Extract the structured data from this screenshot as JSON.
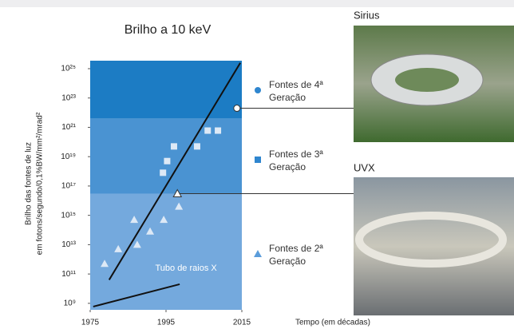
{
  "chart_data": {
    "type": "scatter",
    "title": "Brilho a 10 keV",
    "y_label": [
      "Brilho das fontes de luz",
      "em fotons/segundo/0,1%BW/mm²/mrad²"
    ],
    "x_label": "Tempo (em décadas)",
    "log_y": true,
    "xlim": [
      1975,
      2015
    ],
    "xticks": [
      1975,
      1995,
      2015
    ],
    "ylim": [
      360000000.0,
      3.5e+25
    ],
    "yticks": [
      {
        "value": 1000000000.0,
        "label": "10⁹"
      },
      {
        "value": 100000000000.0,
        "label": "10¹¹"
      },
      {
        "value": 10000000000000.0,
        "label": "10¹³"
      },
      {
        "value": 1000000000000000.0,
        "label": "10¹⁵"
      },
      {
        "value": 1e+17,
        "label": "10¹⁷"
      },
      {
        "value": 1e+19,
        "label": "10¹⁹"
      },
      {
        "value": 1e+21,
        "label": "10²¹"
      },
      {
        "value": 1e+23,
        "label": "10²³"
      },
      {
        "value": 1e+25,
        "label": "10²⁵"
      }
    ],
    "bands": [
      {
        "ylim": [
          4e+21,
          3.5e+25
        ],
        "color": "#1c7cc4"
      },
      {
        "ylim": [
          3e+16,
          4e+21
        ],
        "color": "#4a93d2"
      },
      {
        "ylim": [
          360000000.0,
          3e+16
        ],
        "color": "#74a9dd"
      }
    ],
    "series": [
      {
        "name": "Fontes de 4ª Geração",
        "marker": "circle",
        "color": "#2f86cf",
        "x": [],
        "values": []
      },
      {
        "name": "Fontes de 3ª Geração",
        "marker": "square",
        "color": "#2f86cf",
        "x": [
          1994.2,
          1995.3,
          1997.1,
          2003.2,
          2006,
          2008.7
        ],
        "values": [
          8e+17,
          5e+18,
          5e+19,
          5e+19,
          6e+20,
          6e+20
        ]
      },
      {
        "name": "Fontes de 2ª Geração",
        "marker": "triangle",
        "color": "#5b9ddb",
        "x": [
          1978.8,
          1982.4,
          1987.4,
          1990.8,
          1986.6,
          1994.4,
          1998.4
        ],
        "values": [
          500000000000.0,
          5000000000000.0,
          10000000000000.0,
          80000000000000.0,
          500000000000000.0,
          500000000000000.0,
          4000000000000000.0
        ]
      }
    ],
    "point_color": "#dde9f6",
    "lines": [
      {
        "x": [
          1980,
          2014.6
        ],
        "values": [
          40000000000.0,
          2.5e+25
        ]
      },
      {
        "x": [
          1975.8,
          1998.6
        ],
        "values": [
          600000000.0,
          20000000000.0
        ],
        "label": "Tubo de raios X"
      }
    ],
    "callouts": [
      {
        "label": "Sirius",
        "marker": "circle",
        "x": 2013.7,
        "y": 2e+22
      },
      {
        "label": "UVX",
        "marker": "triangle",
        "x": 1998,
        "y": 3e+16
      }
    ]
  }
}
